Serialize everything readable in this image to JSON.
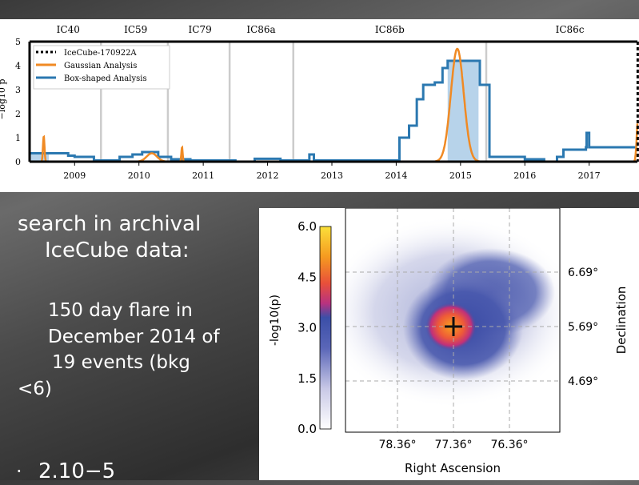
{
  "slide": {
    "heading_line1": "search in archival",
    "heading_line2": "IceCube data:",
    "bullet1_line1": "150 day flare in",
    "bullet1_line2": "December 2014 of",
    "bullet1_line3": "19 events (bkg",
    "bullet1_line4": "<6)",
    "bullet2": "2.10−5"
  },
  "chart_data": [
    {
      "type": "line",
      "ylabel": "−log10 p",
      "ylim": [
        0,
        5
      ],
      "xlim": [
        2008.3,
        2017.75
      ],
      "yticks": [
        "0",
        "1",
        "2",
        "3",
        "4",
        "5"
      ],
      "xticks": [
        "2009",
        "2010",
        "2011",
        "2012",
        "2013",
        "2014",
        "2015",
        "2016",
        "2017"
      ],
      "season_boundaries": [
        2009.41,
        2010.45,
        2011.41,
        2012.4,
        2015.4
      ],
      "seasons": [
        {
          "label": "IC40",
          "x": 2008.9
        },
        {
          "label": "IC59",
          "x": 2009.95
        },
        {
          "label": "IC79",
          "x": 2010.95
        },
        {
          "label": "IC86a",
          "x": 2011.9
        },
        {
          "label": "IC86b",
          "x": 2013.9
        },
        {
          "label": "IC86c",
          "x": 2016.7
        }
      ],
      "legend": {
        "placement": "top-left",
        "entries": [
          "IceCube-170922A",
          "Gaussian Analysis",
          "Box-shaped Analysis"
        ]
      },
      "colors": {
        "gaussian": "#f08a24",
        "box": "#2b78b0",
        "box_fill": "#b7d3ea",
        "event": "#000000"
      },
      "event_time": 2017.73,
      "gaussian_flares": [
        {
          "t": 2008.52,
          "peak": 1.05,
          "sigma": 0.012
        },
        {
          "t": 2010.2,
          "peak": 0.35,
          "sigma": 0.08
        },
        {
          "t": 2010.67,
          "peak": 0.6,
          "sigma": 0.01
        },
        {
          "t": 2014.95,
          "peak": 4.7,
          "sigma": 0.1
        },
        {
          "t": 2017.76,
          "peak": 1.8,
          "sigma": 0.02
        }
      ],
      "box_series": [
        [
          2008.3,
          0.35
        ],
        [
          2008.9,
          0.25
        ],
        [
          2009.0,
          0.2
        ],
        [
          2009.3,
          0.05
        ],
        [
          2009.7,
          0.2
        ],
        [
          2009.9,
          0.3
        ],
        [
          2010.05,
          0.4
        ],
        [
          2010.3,
          0.2
        ],
        [
          2010.5,
          0.1
        ],
        [
          2010.8,
          0.05
        ],
        [
          2011.5,
          0.0
        ],
        [
          2011.8,
          0.12
        ],
        [
          2012.2,
          0.05
        ],
        [
          2012.62,
          0.0
        ],
        [
          2012.65,
          0.3
        ],
        [
          2012.72,
          0.05
        ],
        [
          2014.0,
          0.05
        ],
        [
          2014.05,
          1.0
        ],
        [
          2014.2,
          1.5
        ],
        [
          2014.32,
          2.6
        ],
        [
          2014.42,
          3.2
        ],
        [
          2014.6,
          3.3
        ],
        [
          2014.72,
          3.9
        ],
        [
          2014.8,
          4.2
        ],
        [
          2015.28,
          4.2
        ],
        [
          2015.3,
          3.2
        ],
        [
          2015.42,
          3.2
        ],
        [
          2015.45,
          0.2
        ],
        [
          2016.0,
          0.1
        ],
        [
          2016.3,
          0.0
        ],
        [
          2016.5,
          0.2
        ],
        [
          2016.6,
          0.5
        ],
        [
          2016.95,
          0.6
        ],
        [
          2016.96,
          1.2
        ],
        [
          2017.0,
          0.6
        ],
        [
          2017.75,
          0.6
        ]
      ],
      "box_shaded": [
        2014.8,
        2015.28,
        4.2
      ]
    },
    {
      "type": "heatmap",
      "xlabel": "Right Ascension",
      "ylabel": "Declination",
      "colorbar_label": "-log10(p)",
      "colorbar_range": [
        0,
        6
      ],
      "colorbar_ticks": [
        "0.0",
        "1.5",
        "3.0",
        "4.5",
        "6.0"
      ],
      "xticks": [
        "78.36°",
        "77.36°",
        "76.36°"
      ],
      "yticks": [
        "6.69°",
        "5.69°",
        "4.69°"
      ],
      "best_fit": {
        "ra": 77.36,
        "dec": 5.69
      }
    }
  ]
}
